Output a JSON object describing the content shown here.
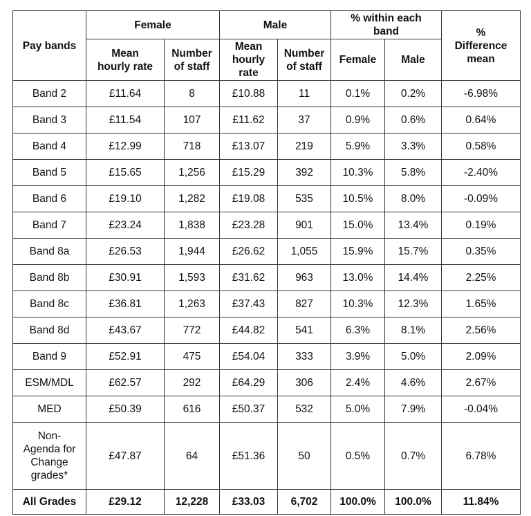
{
  "header": {
    "pay_bands": "Pay bands",
    "female": "Female",
    "male": "Male",
    "within": "% within each band",
    "difference": "% Difference mean",
    "female_mean": "Mean hourly rate",
    "female_number": "Number of staff",
    "male_mean": "Mean hourly rate",
    "male_number": "Number of staff",
    "within_female": "Female",
    "within_male": "Male"
  },
  "rows": [
    [
      "Band 2",
      "£11.64",
      "8",
      "£10.88",
      "11",
      "0.1%",
      "0.2%",
      "-6.98%"
    ],
    [
      "Band 3",
      "£11.54",
      "107",
      "£11.62",
      "37",
      "0.9%",
      "0.6%",
      "0.64%"
    ],
    [
      "Band 4",
      "£12.99",
      "718",
      "£13.07",
      "219",
      "5.9%",
      "3.3%",
      "0.58%"
    ],
    [
      "Band 5",
      "£15.65",
      "1,256",
      "£15.29",
      "392",
      "10.3%",
      "5.8%",
      "-2.40%"
    ],
    [
      "Band 6",
      "£19.10",
      "1,282",
      "£19.08",
      "535",
      "10.5%",
      "8.0%",
      "-0.09%"
    ],
    [
      "Band 7",
      "£23.24",
      "1,838",
      "£23.28",
      "901",
      "15.0%",
      "13.4%",
      "0.19%"
    ],
    [
      "Band 8a",
      "£26.53",
      "1,944",
      "£26.62",
      "1,055",
      "15.9%",
      "15.7%",
      "0.35%"
    ],
    [
      "Band 8b",
      "£30.91",
      "1,593",
      "£31.62",
      "963",
      "13.0%",
      "14.4%",
      "2.25%"
    ],
    [
      "Band 8c",
      "£36.81",
      "1,263",
      "£37.43",
      "827",
      "10.3%",
      "12.3%",
      "1.65%"
    ],
    [
      "Band 8d",
      "£43.67",
      "772",
      "£44.82",
      "541",
      "6.3%",
      "8.1%",
      "2.56%"
    ],
    [
      "Band 9",
      "£52.91",
      "475",
      "£54.04",
      "333",
      "3.9%",
      "5.0%",
      "2.09%"
    ],
    [
      "ESM/MDL",
      "£62.57",
      "292",
      "£64.29",
      "306",
      "2.4%",
      "4.6%",
      "2.67%"
    ],
    [
      "MED",
      "£50.39",
      "616",
      "£50.37",
      "532",
      "5.0%",
      "7.9%",
      "-0.04%"
    ],
    [
      "Non-Agenda for Change grades*",
      "£47.87",
      "64",
      "£51.36",
      "50",
      "0.5%",
      "0.7%",
      "6.78%"
    ]
  ],
  "total": [
    "All Grades",
    "£29.12",
    "12,228",
    "£33.03",
    "6,702",
    "100.0%",
    "100.0%",
    "11.84%"
  ]
}
